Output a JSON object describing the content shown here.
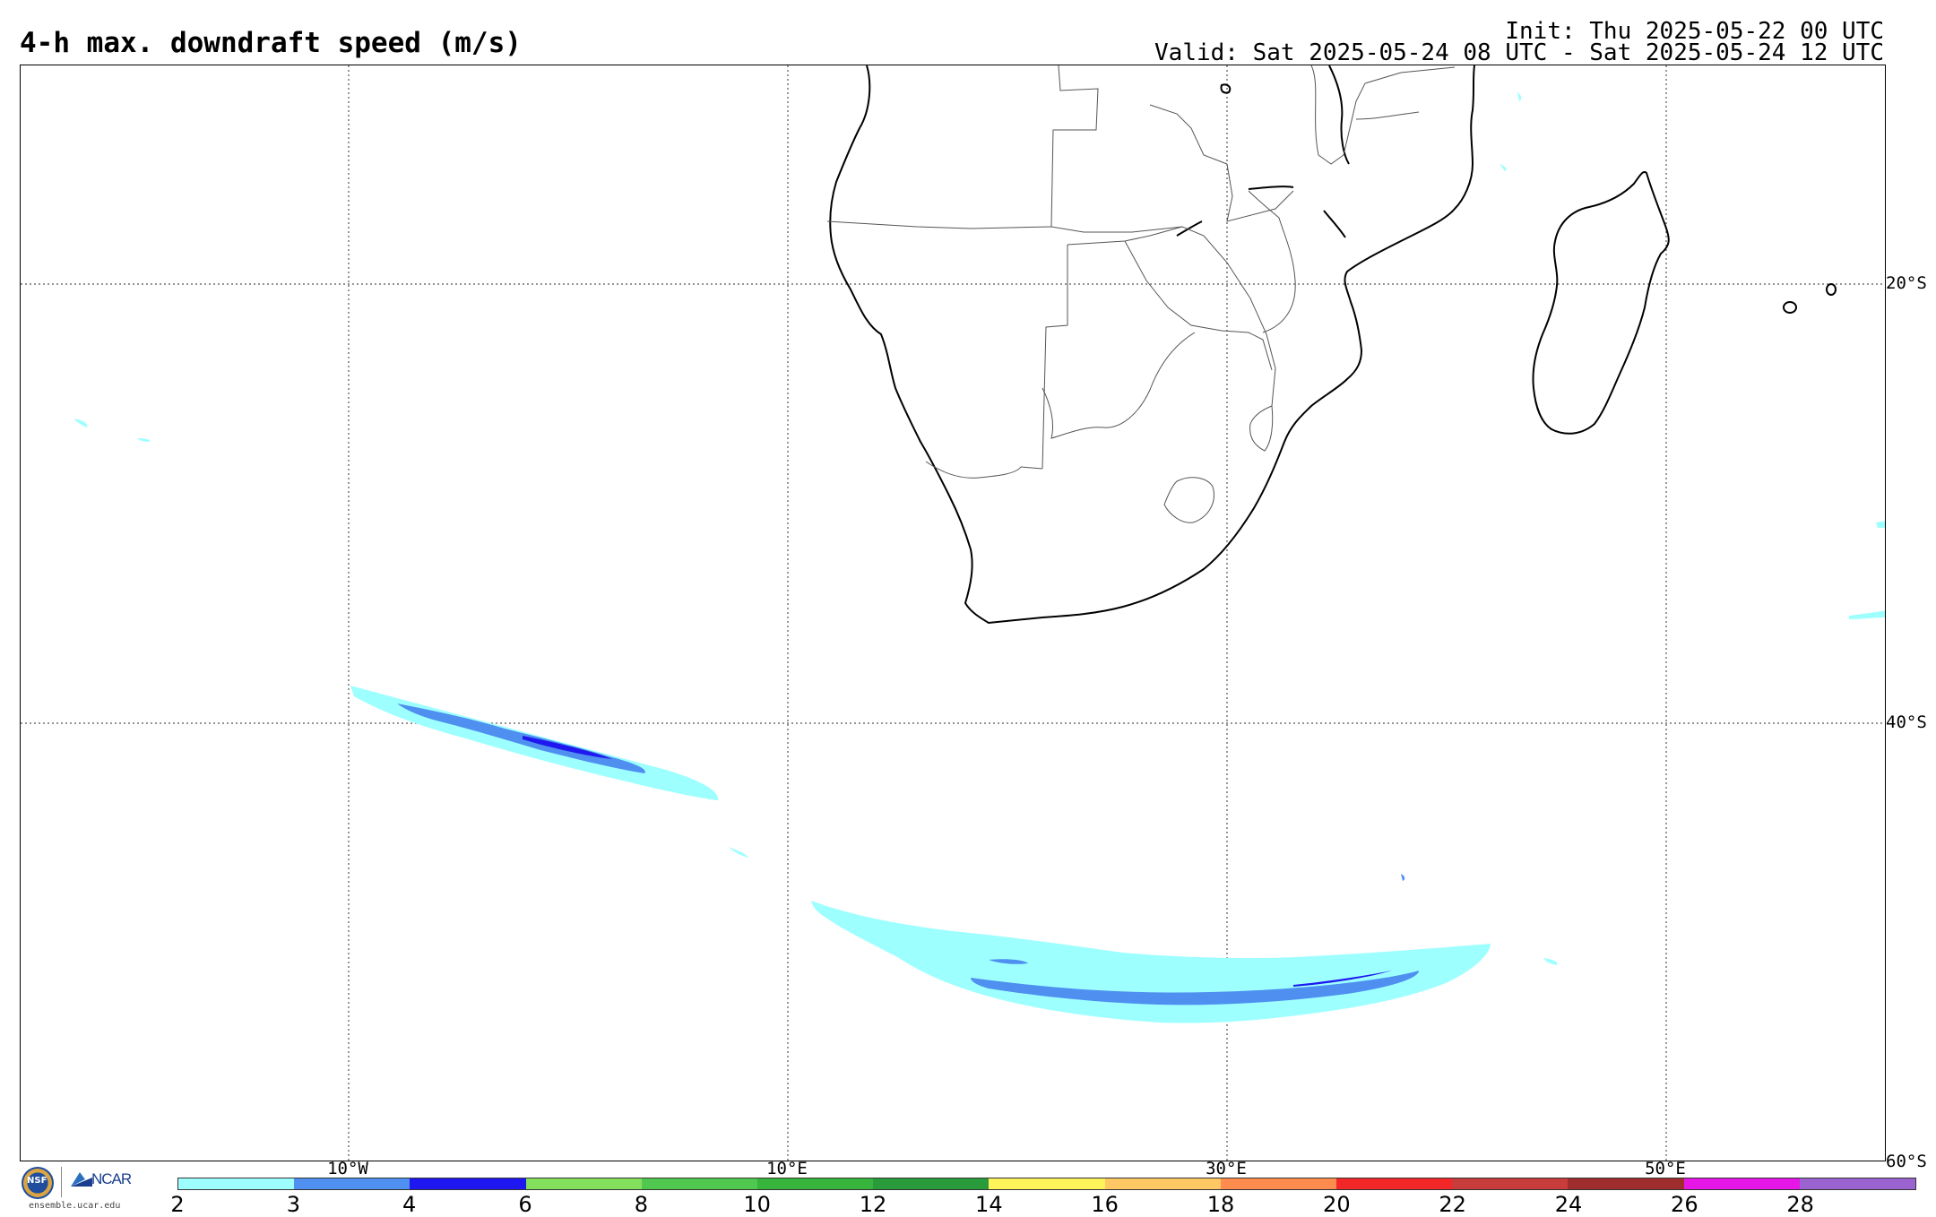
{
  "header": {
    "title": "4-h max. downdraft speed (m/s)",
    "init": "Init: Thu 2025-05-22 00 UTC",
    "valid": "Valid: Sat 2025-05-24 08 UTC - Sat 2025-05-24 12 UTC"
  },
  "map": {
    "region": "Southern Africa and South Atlantic / Indian Ocean",
    "lat_labels": [
      "20°S",
      "40°S",
      "60°S"
    ],
    "lon_labels": [
      "10°W",
      "10°E",
      "30°E",
      "50°E"
    ],
    "gridlines": "dotted",
    "field": "4-h maximum downdraft speed",
    "units": "m/s"
  },
  "colorbar": {
    "ticks": [
      "2",
      "3",
      "4",
      "6",
      "8",
      "10",
      "12",
      "14",
      "16",
      "18",
      "20",
      "22",
      "24",
      "26",
      "28"
    ],
    "colors": [
      "#9effff",
      "#4f8ff0",
      "#1f17f0",
      "#84e05c",
      "#50c850",
      "#36b43c",
      "#2a9b3a",
      "#fff35c",
      "#ffc864",
      "#ff8c4f",
      "#f22727",
      "#c83c3c",
      "#a02d2d",
      "#e617e6",
      "#9a63d0"
    ]
  },
  "logo": {
    "nsf": "NSF",
    "ncar": "NCAR",
    "site": "ensemble.ucar.edu"
  }
}
